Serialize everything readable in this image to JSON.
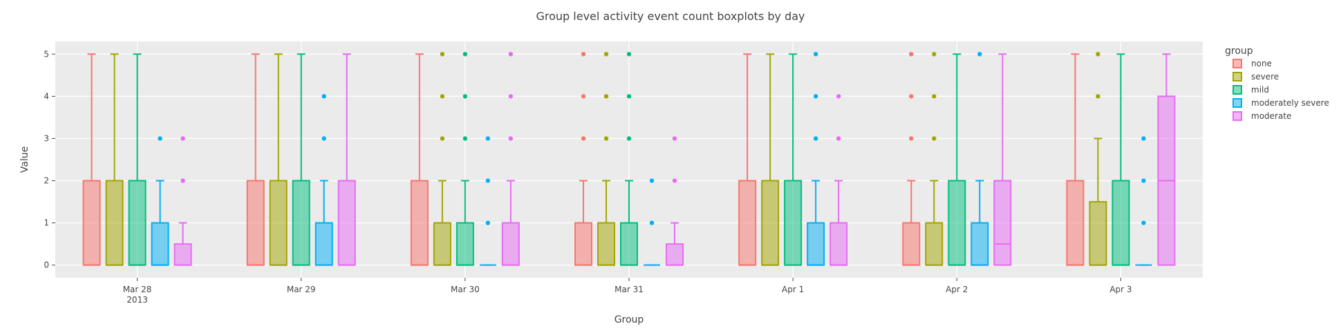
{
  "chart_data": {
    "type": "box",
    "title": "Group level activity event count boxplots by day",
    "xlabel": "Group",
    "ylabel": "Value",
    "ylim": [
      -0.3,
      5.3
    ],
    "yticks": [
      0,
      1,
      2,
      3,
      4,
      5
    ],
    "grid": true,
    "legend_position": "right",
    "legend_title": "group",
    "categories": [
      "Mar 28",
      "Mar 29",
      "Mar 30",
      "Mar 31",
      "Apr 1",
      "Apr 2",
      "Apr 3"
    ],
    "category_sublabels": [
      "2013",
      "",
      "",
      "",
      "",
      "",
      ""
    ],
    "series": [
      {
        "name": "none",
        "color": "#f8766d",
        "boxes": [
          {
            "q1": 0,
            "median": 0,
            "q3": 2,
            "lower": 0,
            "upper": 5,
            "outliers": []
          },
          {
            "q1": 0,
            "median": 0,
            "q3": 2,
            "lower": 0,
            "upper": 5,
            "outliers": []
          },
          {
            "q1": 0,
            "median": 0,
            "q3": 2,
            "lower": 0,
            "upper": 5,
            "outliers": []
          },
          {
            "q1": 0,
            "median": 0,
            "q3": 1,
            "lower": 0,
            "upper": 2,
            "outliers": [
              3,
              4,
              5
            ]
          },
          {
            "q1": 0,
            "median": 0,
            "q3": 2,
            "lower": 0,
            "upper": 5,
            "outliers": []
          },
          {
            "q1": 0,
            "median": 0,
            "q3": 1,
            "lower": 0,
            "upper": 2,
            "outliers": [
              3,
              4,
              5
            ]
          },
          {
            "q1": 0,
            "median": 0,
            "q3": 2,
            "lower": 0,
            "upper": 5,
            "outliers": []
          }
        ]
      },
      {
        "name": "severe",
        "color": "#a3a500",
        "boxes": [
          {
            "q1": 0,
            "median": 0,
            "q3": 2,
            "lower": 0,
            "upper": 5,
            "outliers": []
          },
          {
            "q1": 0,
            "median": 0,
            "q3": 2,
            "lower": 0,
            "upper": 5,
            "outliers": []
          },
          {
            "q1": 0,
            "median": 0,
            "q3": 1,
            "lower": 0,
            "upper": 2,
            "outliers": [
              3,
              4,
              5
            ]
          },
          {
            "q1": 0,
            "median": 0,
            "q3": 1,
            "lower": 0,
            "upper": 2,
            "outliers": [
              3,
              4,
              5
            ]
          },
          {
            "q1": 0,
            "median": 0,
            "q3": 2,
            "lower": 0,
            "upper": 5,
            "outliers": []
          },
          {
            "q1": 0,
            "median": 0,
            "q3": 1,
            "lower": 0,
            "upper": 2,
            "outliers": [
              3,
              4,
              5
            ]
          },
          {
            "q1": 0,
            "median": 0,
            "q3": 1.5,
            "lower": 0,
            "upper": 3,
            "outliers": [
              4,
              5
            ]
          }
        ]
      },
      {
        "name": "mild",
        "color": "#00bf7d",
        "boxes": [
          {
            "q1": 0,
            "median": 0,
            "q3": 2,
            "lower": 0,
            "upper": 5,
            "outliers": []
          },
          {
            "q1": 0,
            "median": 0,
            "q3": 2,
            "lower": 0,
            "upper": 5,
            "outliers": []
          },
          {
            "q1": 0,
            "median": 0,
            "q3": 1,
            "lower": 0,
            "upper": 2,
            "outliers": [
              3,
              4,
              5
            ]
          },
          {
            "q1": 0,
            "median": 0,
            "q3": 1,
            "lower": 0,
            "upper": 2,
            "outliers": [
              3,
              4,
              5
            ]
          },
          {
            "q1": 0,
            "median": 0,
            "q3": 2,
            "lower": 0,
            "upper": 5,
            "outliers": []
          },
          {
            "q1": 0,
            "median": 0,
            "q3": 2,
            "lower": 0,
            "upper": 5,
            "outliers": []
          },
          {
            "q1": 0,
            "median": 0,
            "q3": 2,
            "lower": 0,
            "upper": 5,
            "outliers": []
          }
        ]
      },
      {
        "name": "moderately severe",
        "color": "#00b0f6",
        "boxes": [
          {
            "q1": 0,
            "median": 0,
            "q3": 1,
            "lower": 0,
            "upper": 2,
            "outliers": [
              3
            ]
          },
          {
            "q1": 0,
            "median": 0,
            "q3": 1,
            "lower": 0,
            "upper": 2,
            "outliers": [
              3,
              4
            ]
          },
          {
            "q1": 0,
            "median": 0,
            "q3": 0,
            "lower": 0,
            "upper": 0,
            "outliers": [
              1,
              2,
              3
            ]
          },
          {
            "q1": 0,
            "median": 0,
            "q3": 0,
            "lower": 0,
            "upper": 0,
            "outliers": [
              1,
              2
            ]
          },
          {
            "q1": 0,
            "median": 0,
            "q3": 1,
            "lower": 0,
            "upper": 2,
            "outliers": [
              3,
              4,
              5
            ]
          },
          {
            "q1": 0,
            "median": 0,
            "q3": 1,
            "lower": 0,
            "upper": 2,
            "outliers": [
              5
            ]
          },
          {
            "q1": 0,
            "median": 0,
            "q3": 0,
            "lower": 0,
            "upper": 0,
            "outliers": [
              1,
              2,
              3
            ]
          }
        ]
      },
      {
        "name": "moderate",
        "color": "#e76bf3",
        "boxes": [
          {
            "q1": 0,
            "median": 0,
            "q3": 0.5,
            "lower": 0,
            "upper": 1,
            "outliers": [
              2,
              3
            ]
          },
          {
            "q1": 0,
            "median": 0,
            "q3": 2,
            "lower": 0,
            "upper": 5,
            "outliers": []
          },
          {
            "q1": 0,
            "median": 0,
            "q3": 1,
            "lower": 0,
            "upper": 2,
            "outliers": [
              3,
              4,
              5
            ]
          },
          {
            "q1": 0,
            "median": 0,
            "q3": 0.5,
            "lower": 0,
            "upper": 1,
            "outliers": [
              2,
              3
            ]
          },
          {
            "q1": 0,
            "median": 0,
            "q3": 1,
            "lower": 0,
            "upper": 2,
            "outliers": [
              3,
              4
            ]
          },
          {
            "q1": 0,
            "median": 0.5,
            "q3": 2,
            "lower": 0,
            "upper": 5,
            "outliers": []
          },
          {
            "q1": 0,
            "median": 2,
            "q3": 4,
            "lower": 0,
            "upper": 5,
            "outliers": []
          }
        ]
      }
    ]
  }
}
